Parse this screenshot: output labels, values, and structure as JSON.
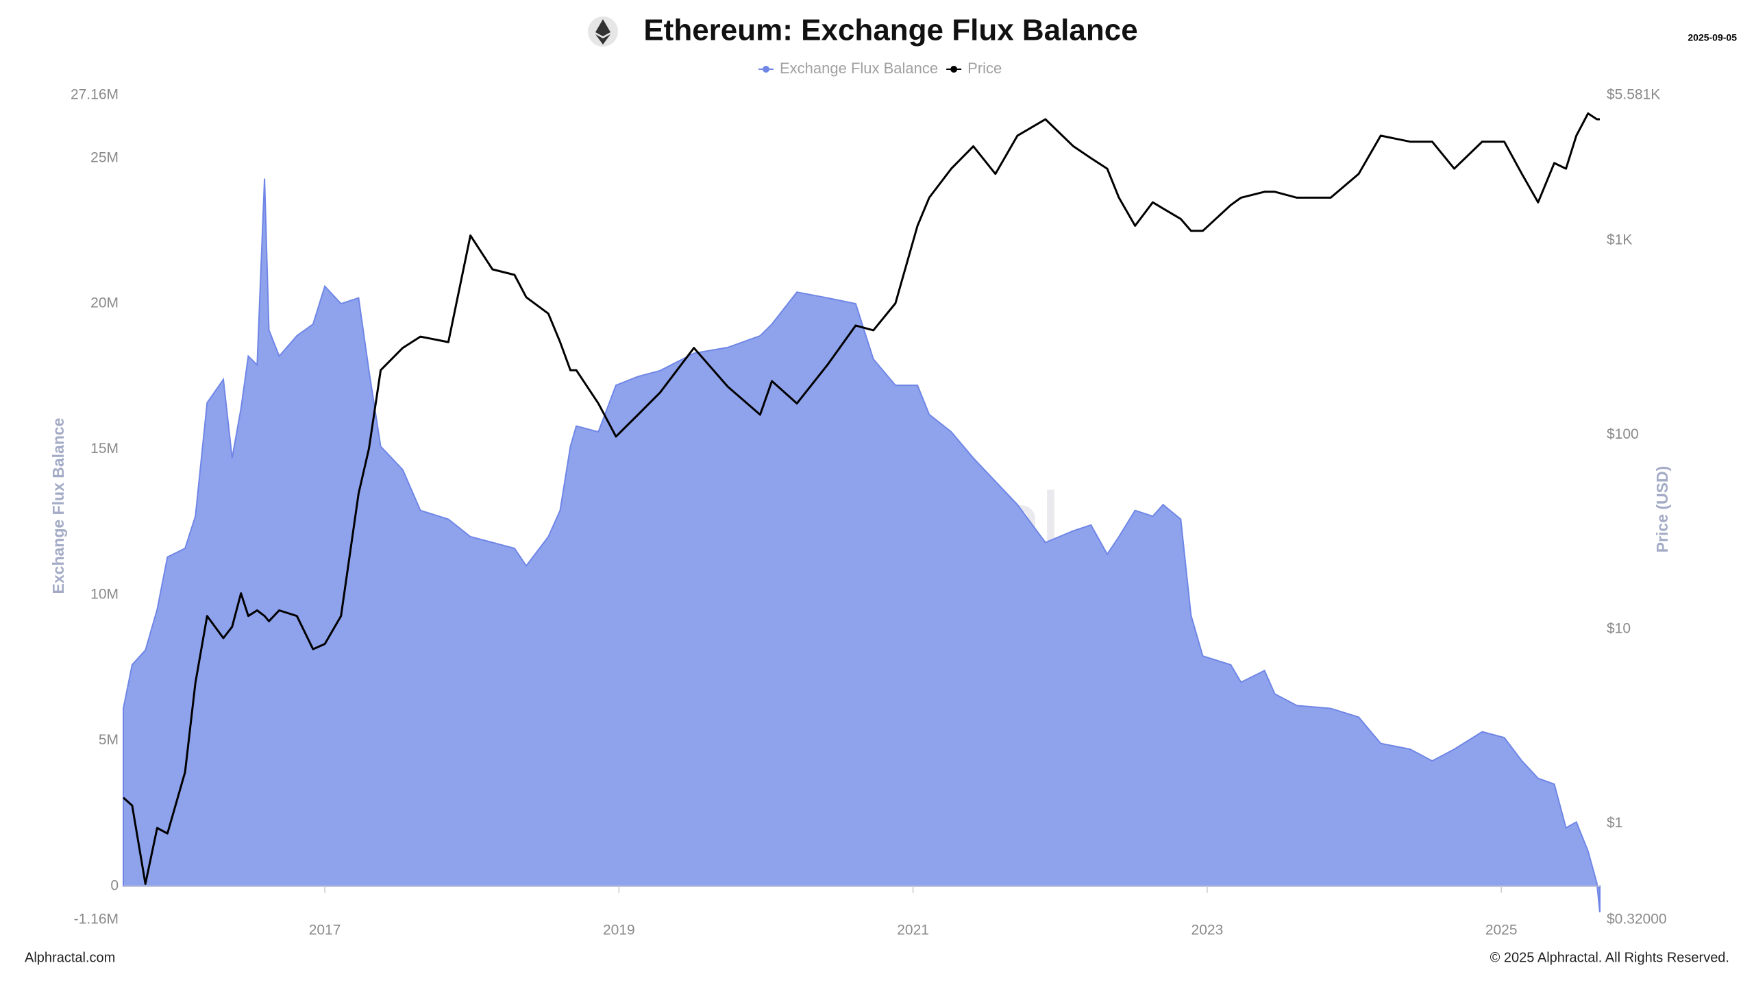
{
  "chart_data": {
    "type": "line",
    "title": "Ethereum: Exchange Flux Balance",
    "date": "2025-09-05",
    "watermark": "Alphractal",
    "footer_left": "Alphractal.com",
    "footer_right": "© 2025 Alphractal. All Rights Reserved.",
    "ylabel": "Exchange Flux Balance",
    "y2label": "Price (USD)",
    "x": [
      2015.63,
      2015.69,
      2015.78,
      2015.86,
      2015.93,
      2016.05,
      2016.12,
      2016.2,
      2016.31,
      2016.37,
      2016.43,
      2016.48,
      2016.54,
      2016.59,
      2016.62,
      2016.69,
      2016.81,
      2016.92,
      2017.0,
      2017.11,
      2017.23,
      2017.3,
      2017.38,
      2017.53,
      2017.65,
      2017.84,
      2017.99,
      2018.14,
      2018.29,
      2018.37,
      2018.52,
      2018.6,
      2018.67,
      2018.71,
      2018.86,
      2018.98,
      2019.13,
      2019.28,
      2019.51,
      2019.74,
      2019.96,
      2020.04,
      2020.21,
      2020.42,
      2020.61,
      2020.73,
      2020.88,
      2021.03,
      2021.11,
      2021.26,
      2021.41,
      2021.56,
      2021.71,
      2021.9,
      2022.09,
      2022.21,
      2022.32,
      2022.4,
      2022.51,
      2022.63,
      2022.7,
      2022.82,
      2022.89,
      2022.97,
      2023.16,
      2023.23,
      2023.39,
      2023.46,
      2023.61,
      2023.84,
      2024.03,
      2024.18,
      2024.38,
      2024.53,
      2024.68,
      2024.87,
      2025.02,
      2025.14,
      2025.25,
      2025.36,
      2025.44,
      2025.51,
      2025.59,
      2025.65,
      2025.67
    ],
    "series": [
      {
        "name": "Exchange Flux Balance",
        "type": "area",
        "color": "#8fa3ed",
        "values": [
          6100000,
          7600000,
          8100000,
          9500000,
          11300000,
          11600000,
          12700000,
          16600000,
          17400000,
          14700000,
          16400000,
          18200000,
          17900000,
          24300000,
          19100000,
          18200000,
          18900000,
          19300000,
          20600000,
          20000000,
          20200000,
          17700000,
          15100000,
          14300000,
          12900000,
          12600000,
          12000000,
          11800000,
          11600000,
          11000000,
          12000000,
          12900000,
          15100000,
          15800000,
          15600000,
          17200000,
          17500000,
          17700000,
          18300000,
          18500000,
          18900000,
          19300000,
          20400000,
          20200000,
          20000000,
          18100000,
          17200000,
          17200000,
          16200000,
          15600000,
          14700000,
          13900000,
          13100000,
          11800000,
          12200000,
          12400000,
          11400000,
          12000000,
          12900000,
          12700000,
          13100000,
          12600000,
          9300000,
          7900000,
          7600000,
          7000000,
          7400000,
          6600000,
          6200000,
          6100000,
          5800000,
          4900000,
          4700000,
          4300000,
          4700000,
          5300000,
          5100000,
          4300000,
          3700000,
          3500000,
          2000000,
          2200000,
          1200000,
          100000,
          -900000
        ]
      },
      {
        "name": "Price",
        "type": "line",
        "color": "#000000",
        "axis": "y2",
        "values": [
          1.36,
          1.24,
          0.49,
          0.95,
          0.89,
          1.84,
          5.3,
          11.7,
          9.0,
          10.3,
          15.3,
          11.7,
          12.5,
          11.7,
          11.0,
          12.5,
          11.7,
          7.9,
          8.4,
          11.7,
          50,
          85,
          215,
          280,
          320,
          300,
          1060,
          710,
          665,
          510,
          420,
          300,
          215,
          215,
          145,
          98,
          127,
          165,
          280,
          177,
          127,
          189,
          145,
          230,
          365,
          345,
          475,
          1190,
          1660,
          2340,
          3050,
          2200,
          3460,
          4200,
          3050,
          2650,
          2340,
          1660,
          1190,
          1570,
          1460,
          1290,
          1120,
          1120,
          1520,
          1660,
          1780,
          1780,
          1660,
          1660,
          2200,
          3460,
          3220,
          3220,
          2340,
          3220,
          3220,
          2200,
          1570,
          2500,
          2340,
          3460,
          4500,
          4200,
          4200
        ]
      }
    ],
    "xlim": [
      2015.63,
      2025.67
    ],
    "xticks": [
      2017,
      2019,
      2021,
      2023,
      2025
    ],
    "ylim": [
      -1160000,
      27160000
    ],
    "yticks": [
      {
        "value": -1160000,
        "label": "-1.16M"
      },
      0,
      {
        "value": 5000000,
        "label": "5M"
      },
      {
        "value": 10000000,
        "label": "10M"
      },
      {
        "value": 15000000,
        "label": "15M"
      },
      {
        "value": 20000000,
        "label": "20M"
      },
      {
        "value": 25000000,
        "label": "25M"
      },
      {
        "value": 27160000,
        "label": "27.16M"
      }
    ],
    "y2lim": [
      0.32,
      5581
    ],
    "y2ticks": [
      {
        "value": 0.32,
        "label": "$0.32000"
      },
      {
        "value": 1,
        "label": "$1"
      },
      {
        "value": 10,
        "label": "$10"
      },
      {
        "value": 100,
        "label": "$100"
      },
      {
        "value": 1000,
        "label": "$1K"
      },
      {
        "value": 5581,
        "label": "$5.581K"
      }
    ],
    "y2log": true,
    "grid": false,
    "legend": "top"
  }
}
